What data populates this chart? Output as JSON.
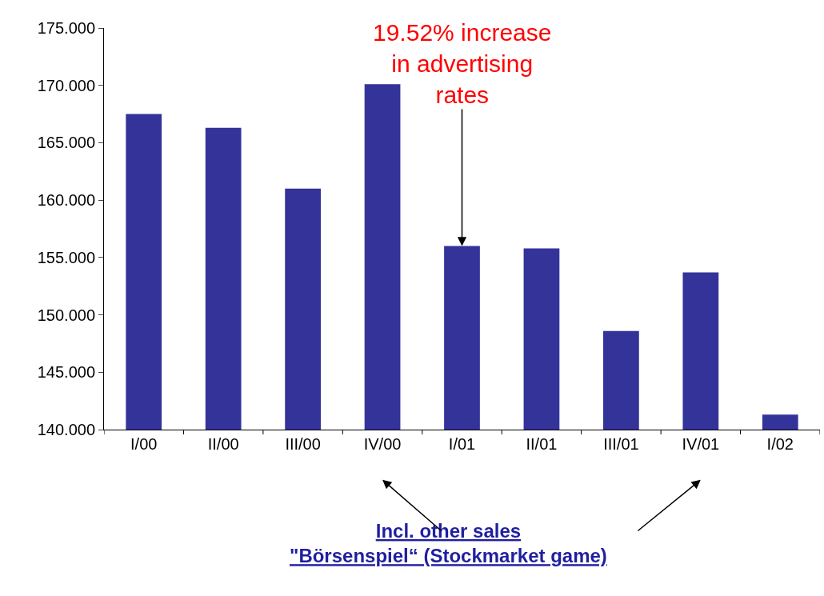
{
  "chart_data": {
    "type": "bar",
    "categories": [
      "I/00",
      "II/00",
      "III/00",
      "IV/00",
      "I/01",
      "II/01",
      "III/01",
      "IV/01",
      "I/02"
    ],
    "values": [
      167.5,
      166.3,
      161.0,
      170.1,
      156.0,
      155.8,
      148.6,
      153.7,
      141.3
    ],
    "color": "#333399",
    "ylim": [
      140,
      175
    ],
    "yticks": [
      {
        "value": 140,
        "label": "140.000"
      },
      {
        "value": 145,
        "label": "145.000"
      },
      {
        "value": 150,
        "label": "150.000"
      },
      {
        "value": 155,
        "label": "155.000"
      },
      {
        "value": 160,
        "label": "160.000"
      },
      {
        "value": 165,
        "label": "165.000"
      },
      {
        "value": 170,
        "label": "170.000"
      },
      {
        "value": 175,
        "label": "175.000"
      }
    ],
    "annotations": [
      {
        "text": "19.52% increase in advertising rates",
        "x": "I/01",
        "y": 156.0
      },
      "Incl. other sales \"Börsenspiel“ (Stockmarket game)"
    ]
  }
}
